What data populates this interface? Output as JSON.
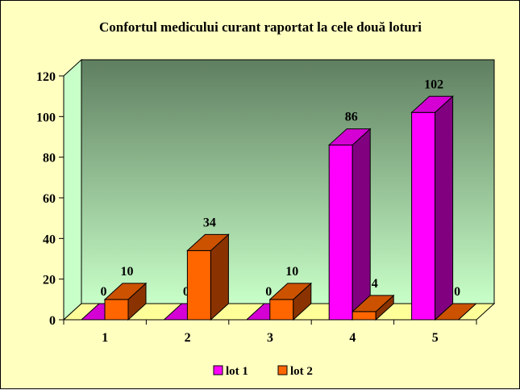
{
  "chart_data": {
    "type": "bar",
    "title": "Confortul medicului curant raportat la cele două loturi",
    "categories": [
      "1",
      "2",
      "3",
      "4",
      "5"
    ],
    "series": [
      {
        "name": "lot 1",
        "values": [
          0,
          0,
          0,
          86,
          102
        ],
        "color": "#ff00ff",
        "side_color": "#800080",
        "top_color": "#d400d4"
      },
      {
        "name": "lot 2",
        "values": [
          10,
          34,
          10,
          4,
          0
        ],
        "color": "#ff6600",
        "side_color": "#8a3300",
        "top_color": "#cc5200"
      }
    ],
    "ylim": [
      0,
      120
    ],
    "yticks": [
      "0",
      "20",
      "40",
      "60",
      "80",
      "100",
      "120"
    ],
    "ytick_values": [
      0,
      20,
      40,
      60,
      80,
      100,
      120
    ],
    "data_labels": {
      "lot 1": [
        "0",
        "0",
        "0",
        "86",
        "102"
      ],
      "lot 2": [
        "10",
        "34",
        "10",
        "4",
        "0"
      ]
    },
    "grid": false,
    "legend_position": "bottom",
    "colors": {
      "background": "#ffffc0",
      "wall_top": "#5f7f60",
      "wall_bottom": "#c8ffc8",
      "floor": "#ffff99"
    }
  }
}
